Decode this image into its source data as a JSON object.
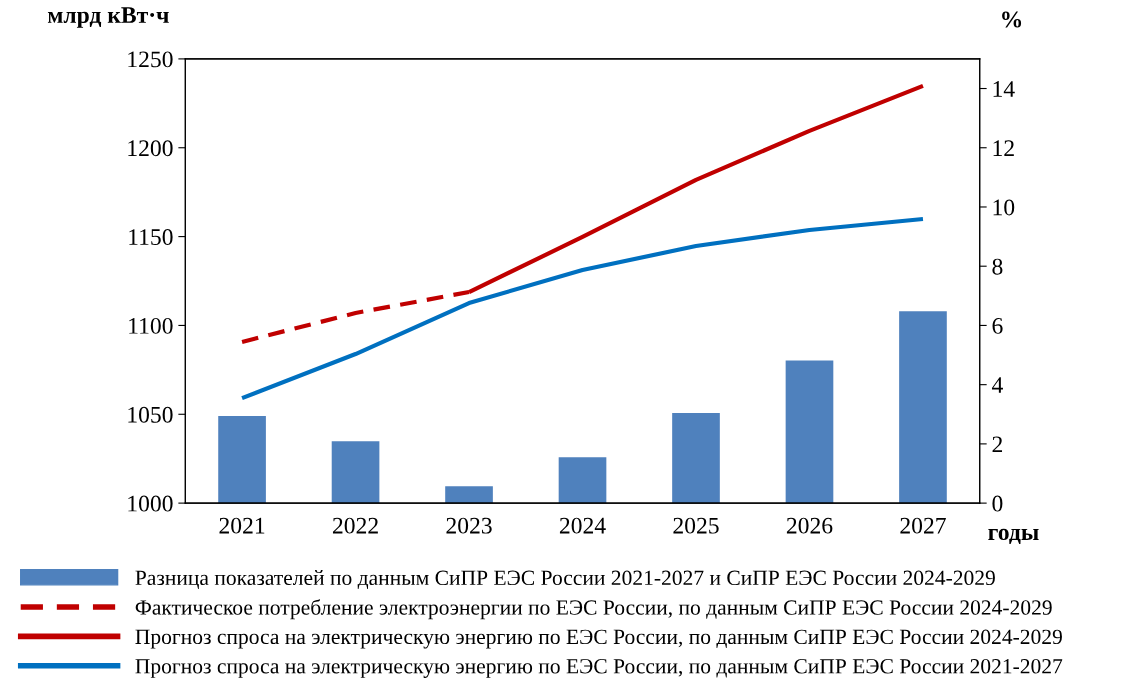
{
  "chart_data": {
    "type": "line",
    "ylabel": "млрд кВт·ч",
    "y2label": "%",
    "xlabel": "годы",
    "categories": [
      "2021",
      "2022",
      "2023",
      "2024",
      "2025",
      "2026",
      "2027"
    ],
    "series": [
      {
        "name": "Разница показателей по данным СиПР ЕЭС России 2021-2027 и СиПР ЕЭС России 2024-2029",
        "type": "bar",
        "axis": "y2",
        "color": "#4f81bd",
        "values": [
          2.94,
          2.09,
          0.57,
          1.55,
          3.04,
          4.82,
          6.48
        ]
      },
      {
        "name": "Фактическое потребление электроэнергии по ЕЭС России, по данным СиПР ЕЭС России 2024-2029",
        "line_style": "dashed",
        "color": "#c00000",
        "values": [
          1090.7,
          1107,
          1118.8,
          null,
          null,
          null,
          null
        ]
      },
      {
        "name": "Прогноз спроса на электрическую энергию по ЕЭС России, по данным СиПР ЕЭС России 2024-2029",
        "line_style": "solid",
        "color": "#c00000",
        "values": [
          null,
          null,
          1118.8,
          1149.8,
          1181.9,
          1209.5,
          1234.8
        ]
      },
      {
        "name": "Прогноз спроса на электрическую энергию по ЕЭС России, по данным СиПР ЕЭС России 2021-2027",
        "line_style": "solid",
        "color": "#0070c0",
        "values": [
          1059.1,
          1083.9,
          1112.6,
          1131.2,
          1144.7,
          1153.7,
          1159.9
        ]
      }
    ],
    "ylim": [
      1000,
      1250
    ],
    "yticks": [
      1000,
      1050,
      1100,
      1150,
      1200,
      1250
    ],
    "y2lim": [
      0,
      15
    ],
    "y2ticks": [
      0,
      2,
      4,
      6,
      8,
      10,
      12,
      14
    ],
    "grid": false,
    "legend": "bottom",
    "marker": "none"
  }
}
